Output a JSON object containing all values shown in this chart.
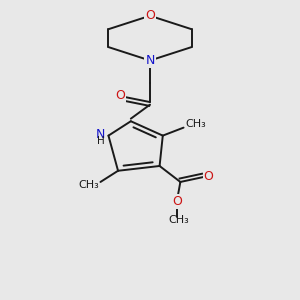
{
  "background_color": "#e8e8e8",
  "bond_color": "#1a1a1a",
  "n_color": "#1414cc",
  "o_color": "#cc1414",
  "text_color": "#1a1a1a",
  "figsize": [
    3.0,
    3.0
  ],
  "dpi": 100,
  "xlim": [
    0.15,
    0.85
  ],
  "ylim": [
    0.05,
    0.98
  ]
}
